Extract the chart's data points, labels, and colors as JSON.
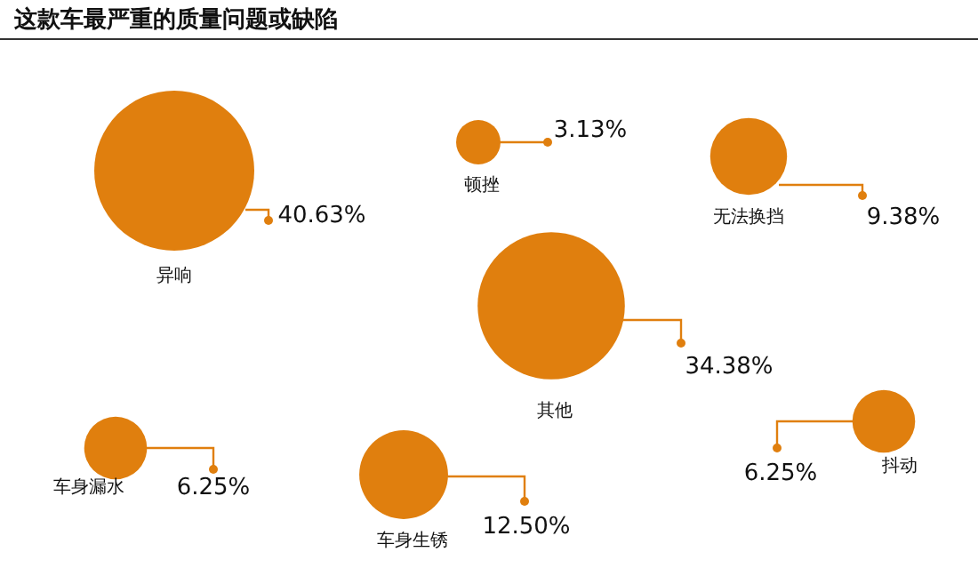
{
  "chart_data": {
    "type": "other",
    "title": "这款车最严重的质量问题或缺陷",
    "categories": [
      "异响",
      "顿挫",
      "无法换挡",
      "其他",
      "车身漏水",
      "车身生锈",
      "抖动"
    ],
    "values": [
      40.63,
      3.13,
      9.38,
      34.38,
      6.25,
      12.5,
      6.25
    ],
    "value_labels": [
      "40.63%",
      "3.13%",
      "9.38%",
      "34.38%",
      "6.25%",
      "12.50%",
      "6.25%"
    ],
    "color": "#e07f0e"
  }
}
